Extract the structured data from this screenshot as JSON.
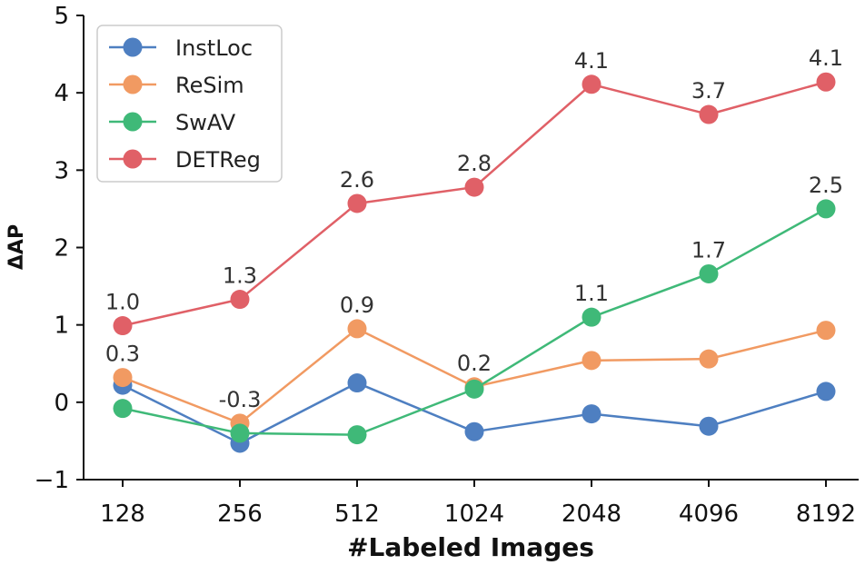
{
  "chart_data": {
    "type": "line",
    "title": "",
    "xlabel": "#Labeled Images",
    "ylabel": "ΔAP",
    "categories": [
      "128",
      "256",
      "512",
      "1024",
      "2048",
      "4096",
      "8192"
    ],
    "ylim": [
      -1,
      5
    ],
    "yticks": [
      -1,
      0,
      1,
      2,
      3,
      4,
      5
    ],
    "ytick_labels": [
      "−1",
      "0",
      "1",
      "2",
      "3",
      "4",
      "5"
    ],
    "legend_position": "top-left",
    "grid": false,
    "series": [
      {
        "name": "InstLoc",
        "color": "#4e7fc1",
        "values": [
          0.22,
          -0.53,
          0.25,
          -0.38,
          -0.15,
          -0.31,
          0.14
        ]
      },
      {
        "name": "ReSim",
        "color": "#f19a62",
        "values": [
          0.32,
          -0.27,
          0.95,
          0.2,
          0.54,
          0.56,
          0.93
        ]
      },
      {
        "name": "SwAV",
        "color": "#3fb978",
        "values": [
          -0.08,
          -0.4,
          -0.42,
          0.17,
          1.1,
          1.66,
          2.5
        ]
      },
      {
        "name": "DETReg",
        "color": "#e06067",
        "values": [
          0.99,
          1.33,
          2.57,
          2.78,
          4.11,
          3.72,
          4.14
        ]
      }
    ],
    "annotations": [
      {
        "category": "128",
        "value": 0.99,
        "text": "1.0"
      },
      {
        "category": "256",
        "value": 1.33,
        "text": "1.3"
      },
      {
        "category": "512",
        "value": 2.57,
        "text": "2.6"
      },
      {
        "category": "1024",
        "value": 2.78,
        "text": "2.8"
      },
      {
        "category": "2048",
        "value": 4.11,
        "text": "4.1"
      },
      {
        "category": "4096",
        "value": 3.72,
        "text": "3.7"
      },
      {
        "category": "8192",
        "value": 4.14,
        "text": "4.1"
      },
      {
        "category": "128",
        "value": 0.32,
        "text": "0.3"
      },
      {
        "category": "256",
        "value": -0.27,
        "text": "-0.3"
      },
      {
        "category": "512",
        "value": 0.95,
        "text": "0.9"
      },
      {
        "category": "1024",
        "value": 0.2,
        "text": "0.2"
      },
      {
        "category": "2048",
        "value": 1.1,
        "text": "1.1"
      },
      {
        "category": "4096",
        "value": 1.66,
        "text": "1.7"
      },
      {
        "category": "8192",
        "value": 2.5,
        "text": "2.5"
      }
    ]
  }
}
